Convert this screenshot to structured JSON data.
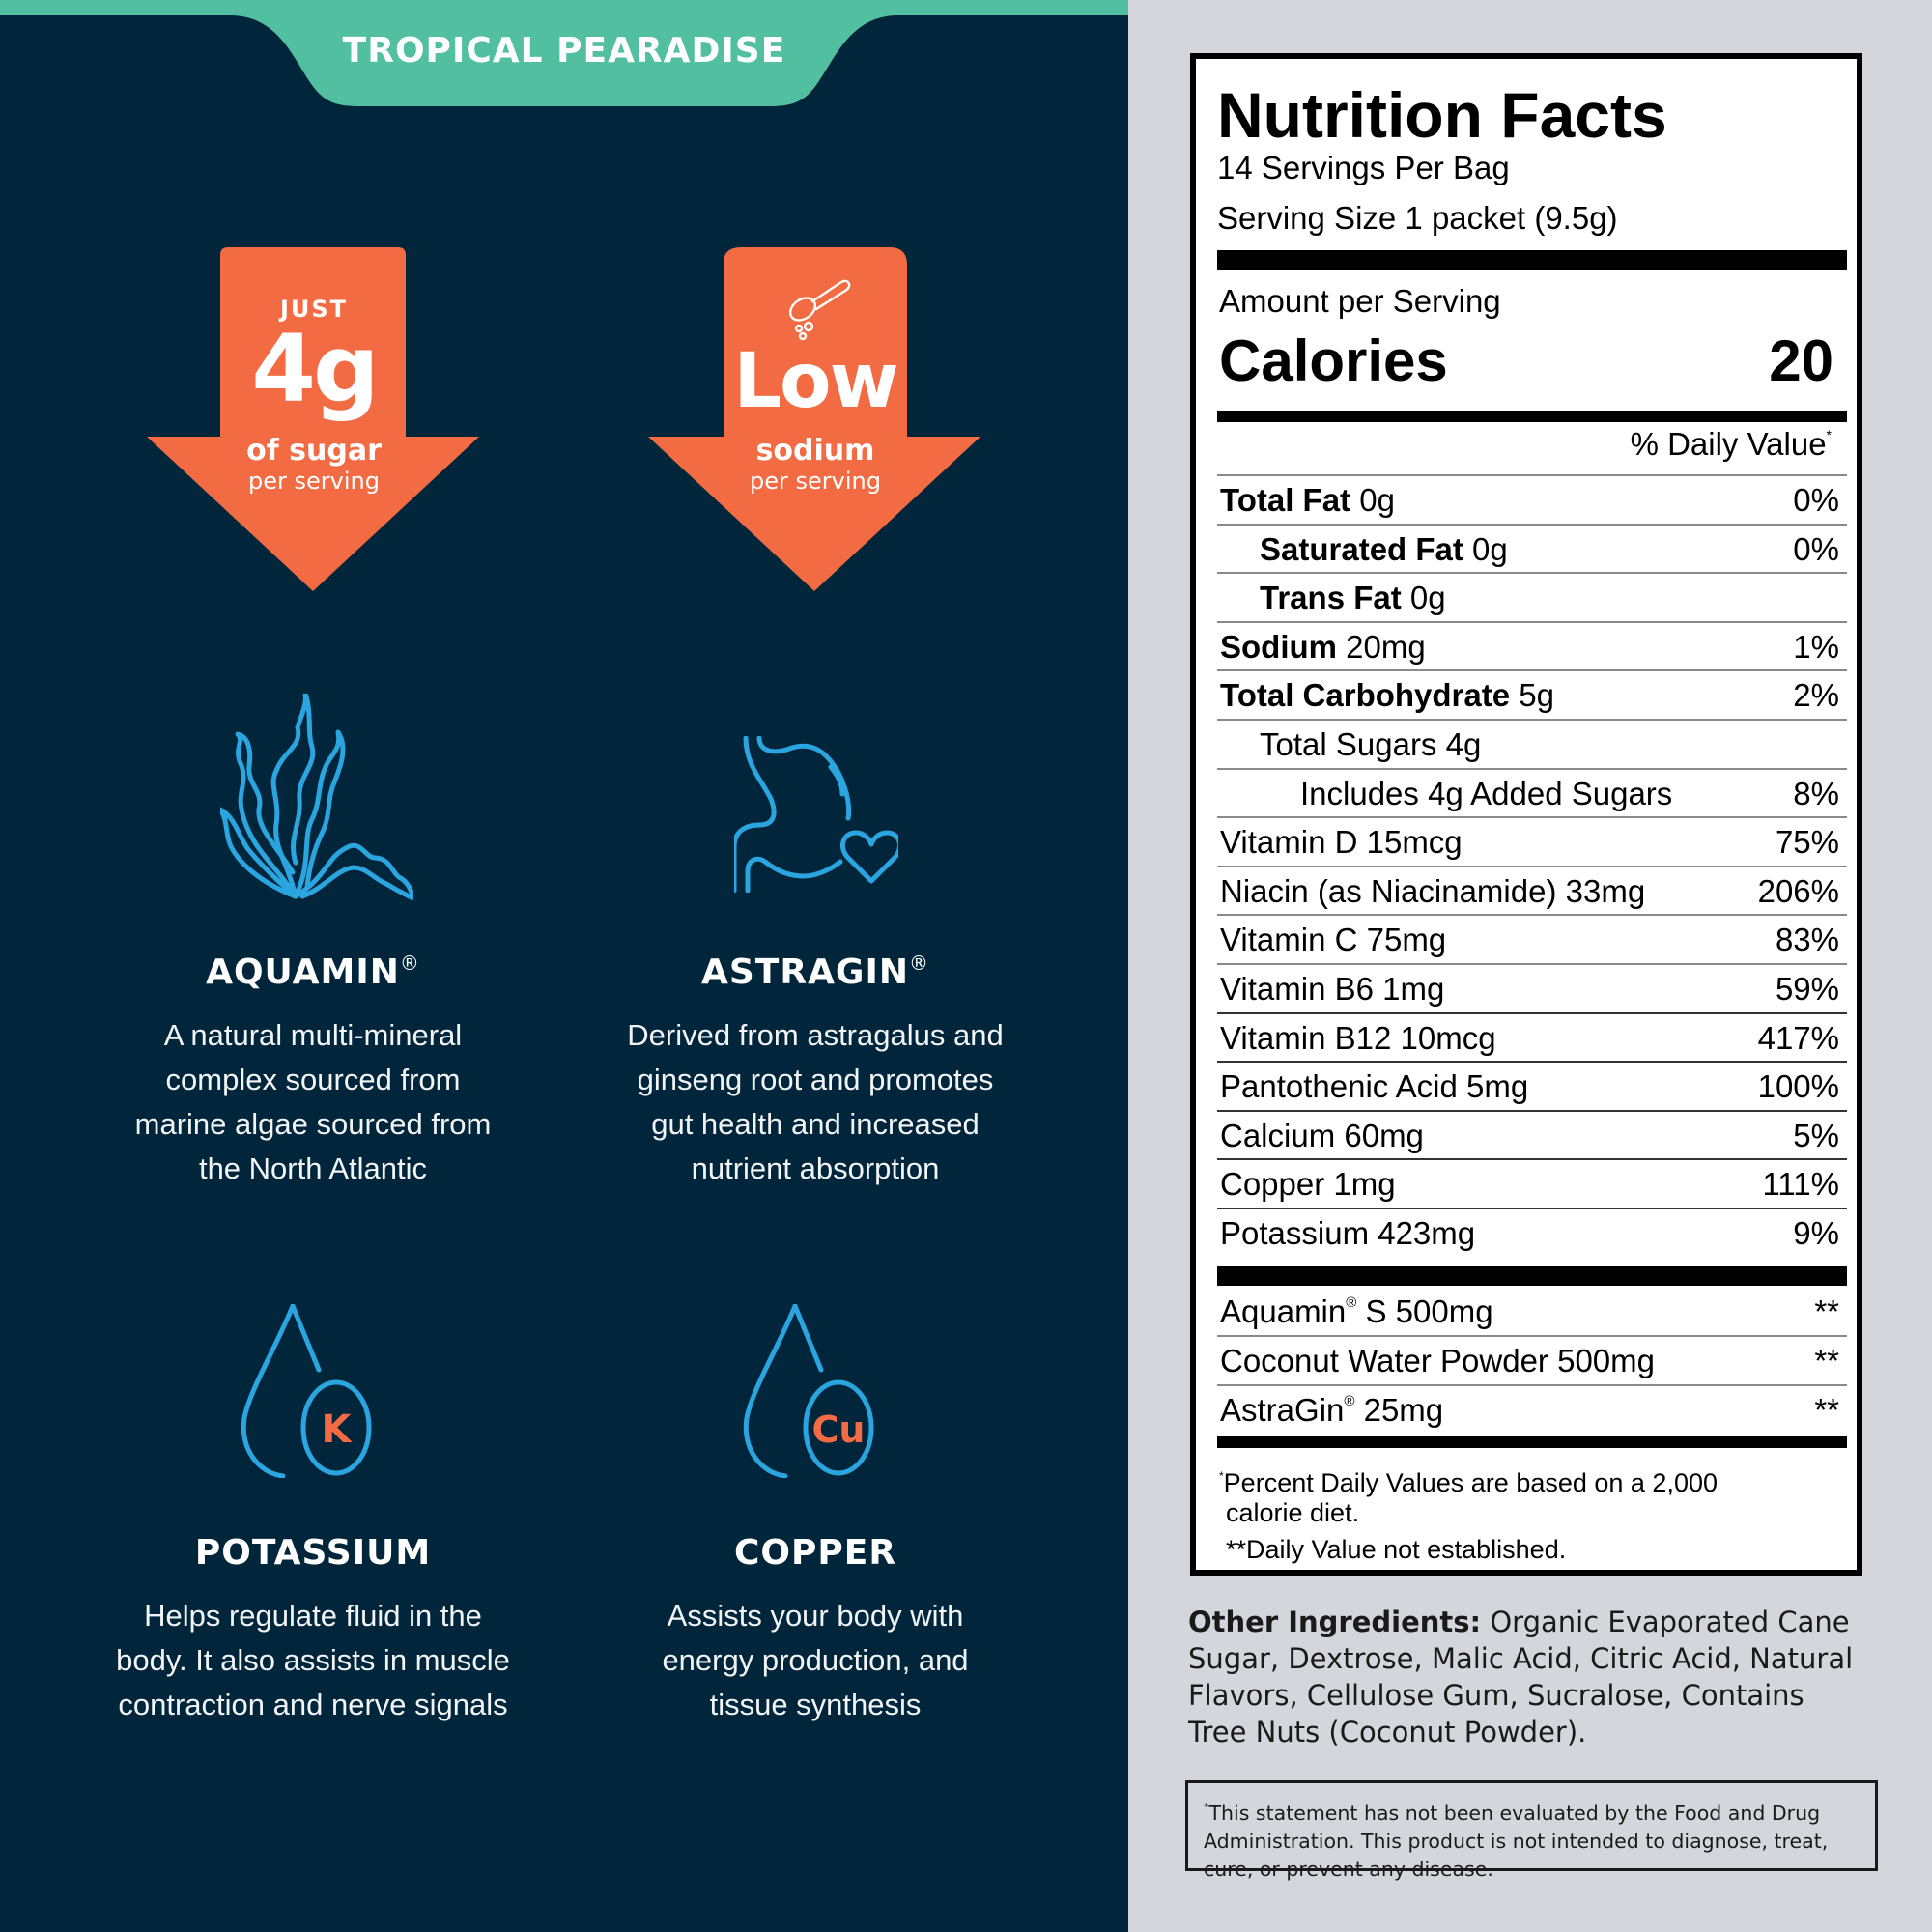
{
  "colors": {
    "left_bg": "#01263b",
    "right_bg": "#d5d6db",
    "tab_teal": "#52c0a0",
    "accent_orange": "#f26b43",
    "icon_blue": "#2aa5e0"
  },
  "header": {
    "flavor_name": "TROPICAL PEARADISE"
  },
  "callouts": [
    {
      "top_label": "JUST",
      "big": "4g",
      "line1": "of sugar",
      "line2": "per serving",
      "icon": null
    },
    {
      "top_label": "",
      "big": "Low",
      "line1": "sodium",
      "line2": "per serving",
      "icon": "scoop-icon"
    }
  ],
  "features": [
    {
      "icon": "seaweed-icon",
      "title": "AQUAMIN",
      "reg": "®",
      "desc": [
        "A natural multi-mineral",
        "complex sourced from",
        "marine algae sourced from",
        "the North Atlantic"
      ]
    },
    {
      "icon": "stomach-heart-icon",
      "title": "ASTRAGIN",
      "reg": "®",
      "desc": [
        "Derived from astragalus and",
        "ginseng root and promotes",
        "gut health and increased",
        "nutrient absorption"
      ]
    },
    {
      "icon": "potassium-drop-icon",
      "icon_symbol": "K",
      "title": "POTASSIUM",
      "reg": "",
      "desc": [
        "Helps regulate fluid in the",
        "body. It also assists in muscle",
        "contraction and nerve signals"
      ]
    },
    {
      "icon": "copper-drop-icon",
      "icon_symbol": "Cu",
      "title": "COPPER",
      "reg": "",
      "desc": [
        "Assists your body with",
        "energy production, and",
        "tissue synthesis"
      ]
    }
  ],
  "nutrition": {
    "title": "Nutrition Facts",
    "servings_per": "14 Servings Per Bag",
    "serving_size": "Serving Size 1 packet (9.5g)",
    "amount_per": "Amount per Serving",
    "calories_label": "Calories",
    "calories_value": "20",
    "dv_header": "% Daily Value",
    "dv_mark": "*",
    "rows": [
      {
        "bold": "Total Fat",
        "amount": " 0g",
        "dv": "0%",
        "indent": 0
      },
      {
        "bold": "Saturated Fat",
        "amount": " 0g",
        "dv": "0%",
        "indent": 1
      },
      {
        "bold": "Trans Fat",
        "amount": " 0g",
        "dv": "",
        "indent": 1
      },
      {
        "bold": "Sodium",
        "amount": " 20mg",
        "dv": "1%",
        "indent": 0
      },
      {
        "bold": "Total Carbohydrate",
        "amount": " 5g",
        "dv": "2%",
        "indent": 0
      },
      {
        "bold": "",
        "amount": "Total Sugars 4g",
        "dv": "",
        "indent": 1
      },
      {
        "bold": "",
        "amount": "Includes 4g Added Sugars",
        "dv": "8%",
        "indent": 2
      },
      {
        "bold": "",
        "amount": "Vitamin D 15mcg",
        "dv": "75%",
        "indent": 0
      },
      {
        "bold": "",
        "amount": "Niacin (as Niacinamide) 33mg",
        "dv": "206%",
        "indent": 0
      },
      {
        "bold": "",
        "amount": "Vitamin C 75mg",
        "dv": "83%",
        "indent": 0
      },
      {
        "bold": "",
        "amount": "Vitamin B6 1mg",
        "dv": "59%",
        "indent": 0
      },
      {
        "bold": "",
        "amount": "Vitamin B12 10mcg",
        "dv": "417%",
        "indent": 0
      },
      {
        "bold": "",
        "amount": "Pantothenic Acid 5mg",
        "dv": "100%",
        "indent": 0
      },
      {
        "bold": "",
        "amount": "Calcium 60mg",
        "dv": "5%",
        "indent": 0
      },
      {
        "bold": "",
        "amount": "Copper 1mg",
        "dv": "111%",
        "indent": 0
      },
      {
        "bold": "",
        "amount": "Potassium 423mg",
        "dv": "9%",
        "indent": 0
      }
    ],
    "other_rows": [
      {
        "name": "Aquamin",
        "reg": "®",
        "amount": " S 500mg",
        "dv": "**"
      },
      {
        "name": "Coconut Water Powder 500mg",
        "reg": "",
        "amount": "",
        "dv": "**"
      },
      {
        "name": "AstraGin",
        "reg": "®",
        "amount": " 25mg",
        "dv": "**"
      }
    ],
    "footnote_mark": "*",
    "footnote_1a": "Percent Daily Values are based on a 2,000",
    "footnote_1b": "calorie diet.",
    "footnote_2": "**Daily Value not established."
  },
  "ingredients": {
    "label": "Other Ingredients:",
    "text": " Organic Evaporated Cane Sugar, Dextrose, Malic Acid, Citric Acid, Natural Flavors, Cellulose Gum, Sucralose, Contains Tree Nuts (Coconut Powder)."
  },
  "disclaimer": {
    "mark": "*",
    "text": "This statement has not been evaluated by the Food and Drug Administration. This product is not intended to diagnose, treat, cure, or prevent any disease."
  }
}
